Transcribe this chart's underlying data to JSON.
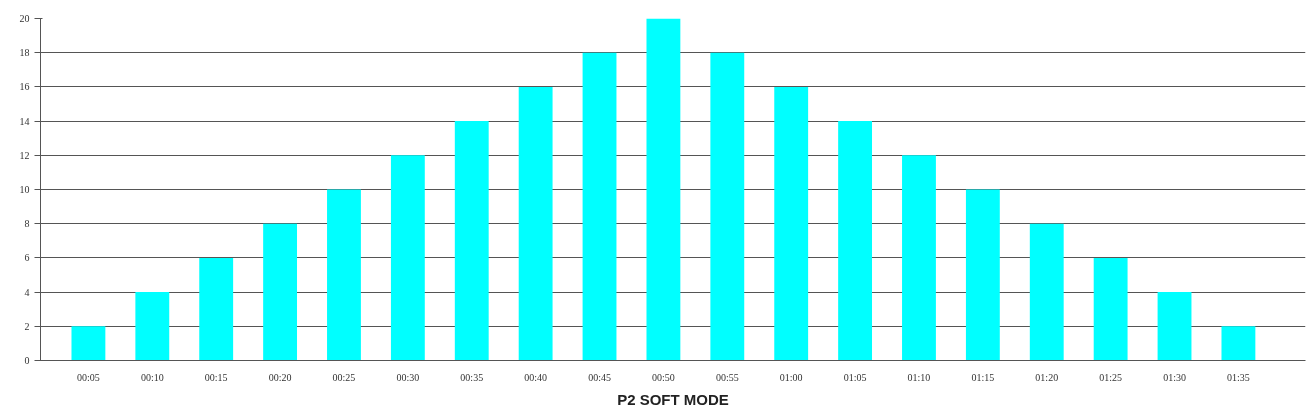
{
  "chart_data": {
    "type": "bar",
    "xlabel": "P2 SOFT MODE",
    "categories": [
      "00:05",
      "00:10",
      "00:15",
      "00:20",
      "00:25",
      "00:30",
      "00:35",
      "00:40",
      "00:45",
      "00:50",
      "00:55",
      "01:00",
      "01:05",
      "01:10",
      "01:15",
      "01:20",
      "01:25",
      "01:30",
      "01:35"
    ],
    "values": [
      2,
      4,
      6,
      8,
      10,
      12,
      14,
      16,
      18,
      20,
      18,
      16,
      14,
      12,
      10,
      8,
      6,
      4,
      2
    ],
    "color": "#00ffff",
    "ylim": [
      0,
      20
    ],
    "yticks": [
      0,
      2,
      4,
      6,
      8,
      10,
      12,
      14,
      16,
      18,
      20
    ],
    "grid": "y"
  }
}
